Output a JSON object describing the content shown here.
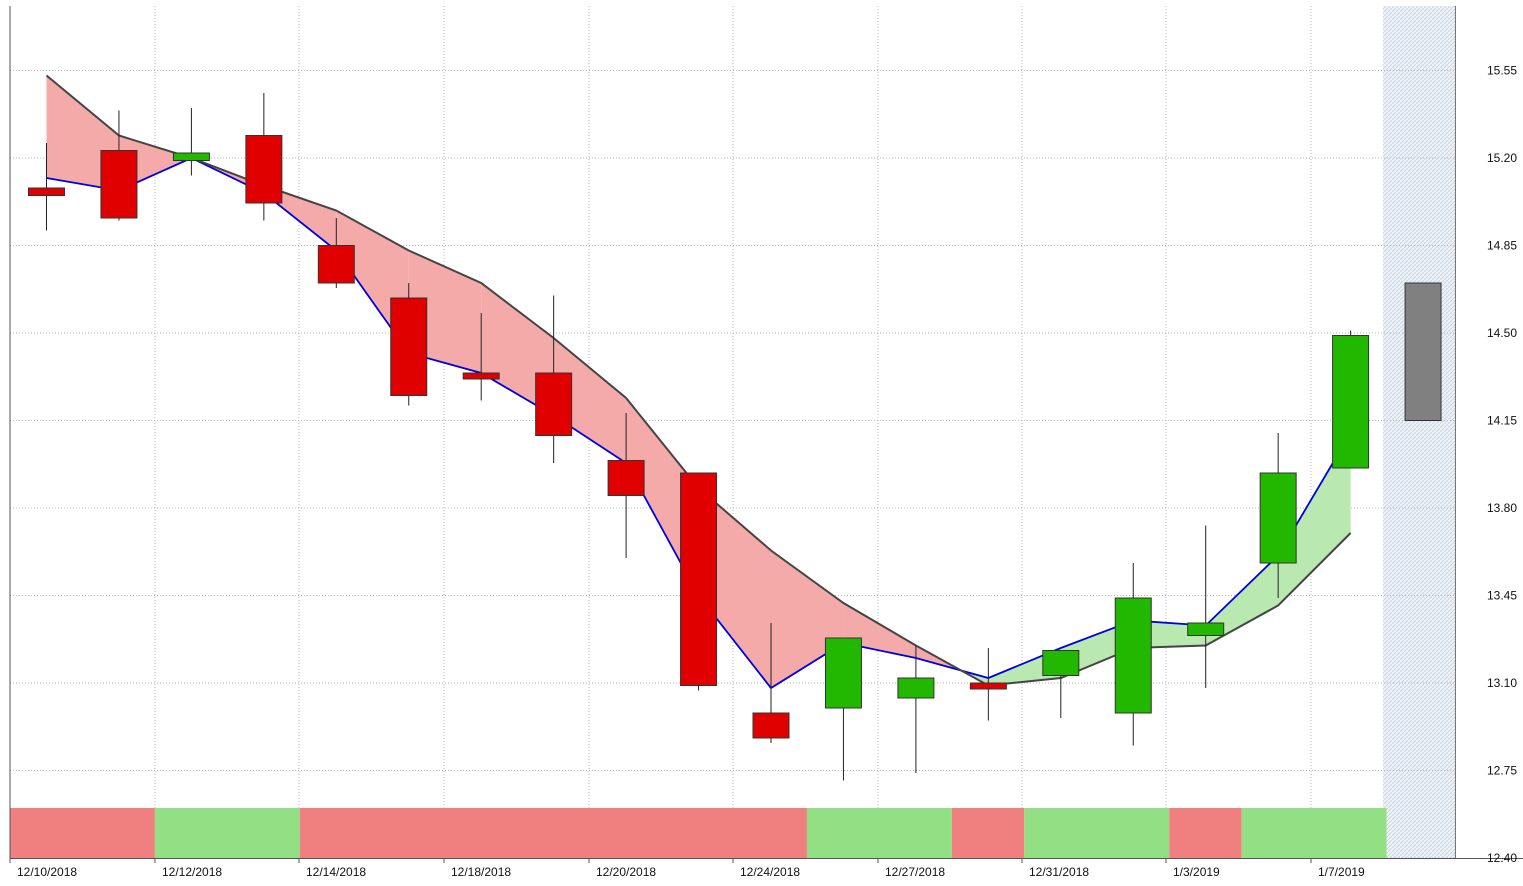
{
  "chart_data": {
    "type": "candlestick",
    "y_ticks": [
      "15.55",
      "15.20",
      "14.85",
      "14.50",
      "14.15",
      "13.80",
      "13.45",
      "13.10",
      "12.75",
      "12.40"
    ],
    "ylim": [
      12.4,
      15.8
    ],
    "x_tick_labels": [
      "12/10/2018",
      "12/12/2018",
      "12/14/2018",
      "12/18/2018",
      "12/20/2018",
      "12/24/2018",
      "12/27/2018",
      "12/31/2018",
      "1/3/2019",
      "1/7/2019"
    ],
    "grid": true,
    "candles": [
      {
        "open": 15.08,
        "high": 15.26,
        "low": 14.91,
        "close": 15.05,
        "color": "#e00000"
      },
      {
        "open": 15.23,
        "high": 15.39,
        "low": 14.95,
        "close": 14.96,
        "color": "#e00000"
      },
      {
        "open": 15.19,
        "high": 15.4,
        "low": 15.13,
        "close": 15.22,
        "color": "#22b800"
      },
      {
        "open": 15.29,
        "high": 15.46,
        "low": 14.95,
        "close": 15.02,
        "color": "#e00000"
      },
      {
        "open": 14.85,
        "high": 14.96,
        "low": 14.68,
        "close": 14.7,
        "color": "#e00000"
      },
      {
        "open": 14.64,
        "high": 14.7,
        "low": 14.21,
        "close": 14.25,
        "color": "#e00000"
      },
      {
        "open": 14.34,
        "high": 14.58,
        "low": 14.23,
        "close": 14.32,
        "color": "#e00000"
      },
      {
        "open": 14.34,
        "high": 14.65,
        "low": 13.98,
        "close": 14.09,
        "color": "#e00000"
      },
      {
        "open": 13.99,
        "high": 14.18,
        "low": 13.6,
        "close": 13.85,
        "color": "#e00000"
      },
      {
        "open": 13.94,
        "high": 13.94,
        "low": 13.07,
        "close": 13.09,
        "color": "#e00000"
      },
      {
        "open": 12.98,
        "high": 13.34,
        "low": 12.86,
        "close": 12.88,
        "color": "#e00000"
      },
      {
        "open": 13.0,
        "high": 13.28,
        "low": 12.71,
        "close": 13.28,
        "color": "#22b800"
      },
      {
        "open": 13.04,
        "high": 13.25,
        "low": 12.74,
        "close": 13.12,
        "color": "#22b800"
      },
      {
        "open": 13.1,
        "high": 13.24,
        "low": 12.95,
        "close": 13.09,
        "color": "#e00000"
      },
      {
        "open": 13.13,
        "high": 13.21,
        "low": 12.96,
        "close": 13.23,
        "color": "#22b800"
      },
      {
        "open": 12.98,
        "high": 13.58,
        "low": 12.85,
        "close": 13.44,
        "color": "#22b800"
      },
      {
        "open": 13.29,
        "high": 13.73,
        "low": 13.08,
        "close": 13.34,
        "color": "#22b800"
      },
      {
        "open": 13.58,
        "high": 14.1,
        "low": 13.44,
        "close": 13.94,
        "color": "#22b800"
      },
      {
        "open": 13.96,
        "high": 14.51,
        "low": 13.96,
        "close": 14.49,
        "color": "#22b800"
      },
      {
        "open": 14.15,
        "high": 14.7,
        "low": 14.15,
        "close": 14.7,
        "color": "#808080"
      }
    ],
    "series": [
      {
        "values": [
          15.12,
          15.07,
          15.2,
          15.06,
          14.83,
          14.42,
          14.34,
          14.17,
          13.98,
          13.45,
          13.08,
          13.26,
          13.2,
          13.12,
          13.24,
          13.35,
          13.33,
          13.61,
          14.1
        ],
        "color": "#0000dd"
      },
      {
        "values": [
          15.53,
          15.29,
          15.2,
          15.09,
          14.99,
          14.83,
          14.7,
          14.48,
          14.24,
          13.88,
          13.63,
          13.42,
          13.25,
          13.09,
          13.12,
          13.24,
          13.25,
          13.41,
          13.7
        ],
        "color": "#444444"
      }
    ],
    "fill_colors": {
      "bearish": "#f5aaaa",
      "bullish": "#b9e8b0"
    },
    "signal_band": [
      {
        "start": 0,
        "end": 2,
        "color": "#f08080"
      },
      {
        "start": 2,
        "end": 4,
        "color": "#92df84"
      },
      {
        "start": 4,
        "end": 11,
        "color": "#f08080"
      },
      {
        "start": 11,
        "end": 13,
        "color": "#92df84"
      },
      {
        "start": 13,
        "end": 14,
        "color": "#f08080"
      },
      {
        "start": 14,
        "end": 16,
        "color": "#92df84"
      },
      {
        "start": 16,
        "end": 17,
        "color": "#f08080"
      },
      {
        "start": 17,
        "end": 19,
        "color": "#92df84"
      }
    ]
  }
}
